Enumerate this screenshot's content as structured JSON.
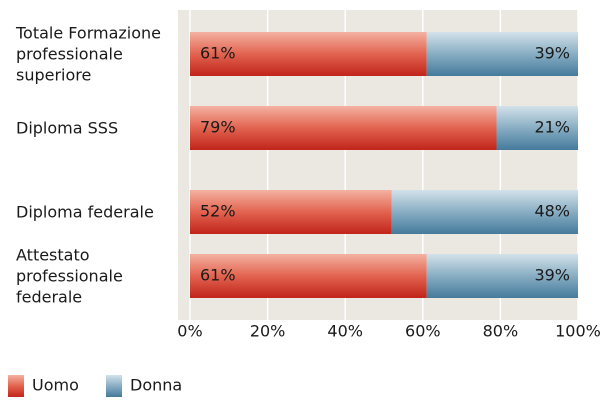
{
  "chart_data": {
    "type": "stacked-bar-horizontal",
    "categories": [
      "Totale Formazione professionale superiore",
      "Diploma SSS",
      "Diploma federale",
      "Attestato professionale federale"
    ],
    "series": [
      {
        "name": "Uomo",
        "color": "#d43a2c",
        "values": [
          61,
          79,
          52,
          61
        ],
        "value_labels": [
          "61%",
          "79%",
          "52%",
          "61%"
        ]
      },
      {
        "name": "Donna",
        "color": "#4f87a8",
        "values": [
          39,
          21,
          48,
          39
        ],
        "value_labels": [
          "39%",
          "21%",
          "48%",
          "39%"
        ]
      }
    ],
    "xlim": [
      0,
      100
    ],
    "xticks": [
      {
        "value": 0,
        "label": "0%"
      },
      {
        "value": 20,
        "label": "20%"
      },
      {
        "value": 40,
        "label": "40%"
      },
      {
        "value": 60,
        "label": "60%"
      },
      {
        "value": 80,
        "label": "80%"
      },
      {
        "value": 100,
        "label": "100%"
      }
    ],
    "grid": true
  }
}
